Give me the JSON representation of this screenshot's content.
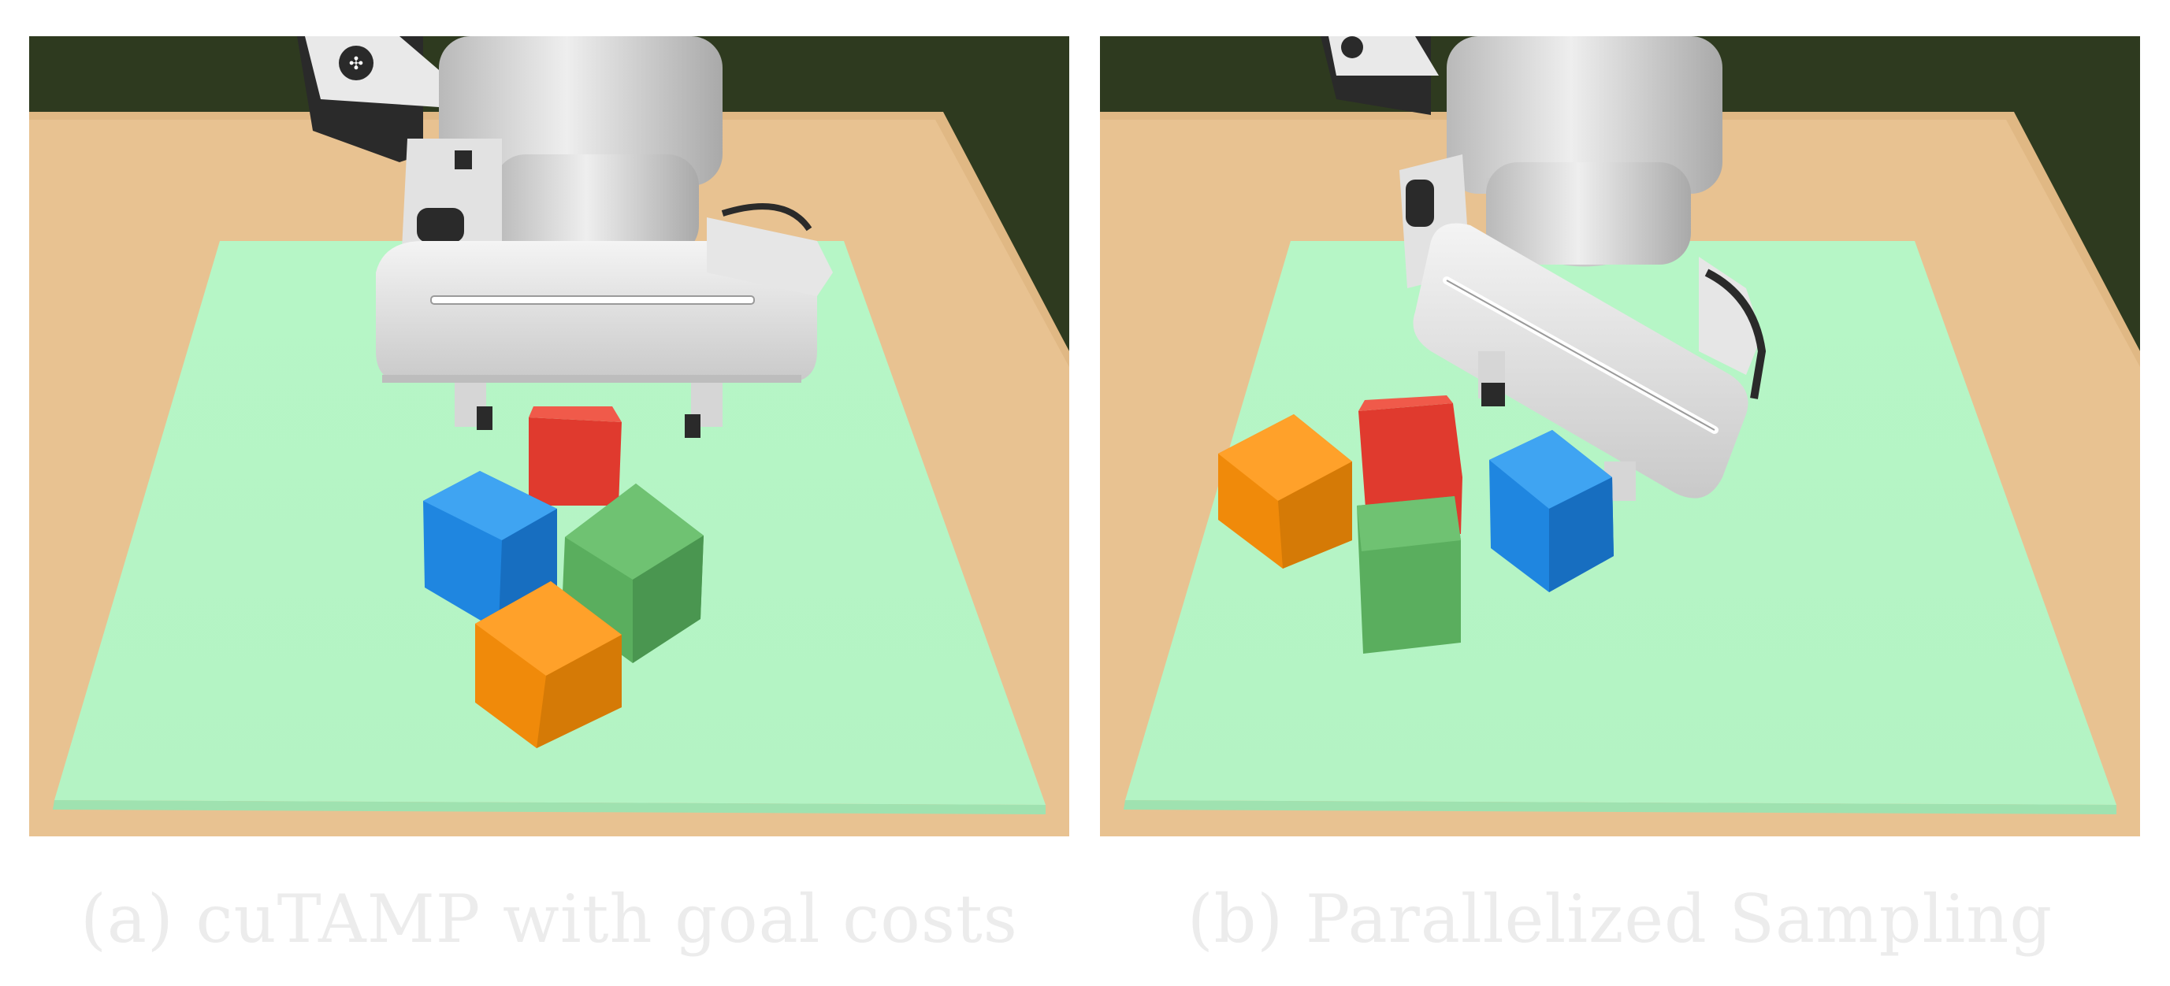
{
  "captions": {
    "a": "(a) cuTAMP with goal costs",
    "b": "(b) Parallelized Sampling"
  },
  "colors": {
    "wall": "#2e3a1f",
    "table": "#e8c291",
    "mat": "#b6f6c6",
    "mat_edge": "#9fe2b0",
    "robot": "#d4d4d4",
    "robot_dark": "#2a2a2a",
    "cube_red": "#e03a2e",
    "cube_blue": "#1f86e0",
    "cube_green": "#5aae5e",
    "cube_orange": "#f08a0a"
  }
}
